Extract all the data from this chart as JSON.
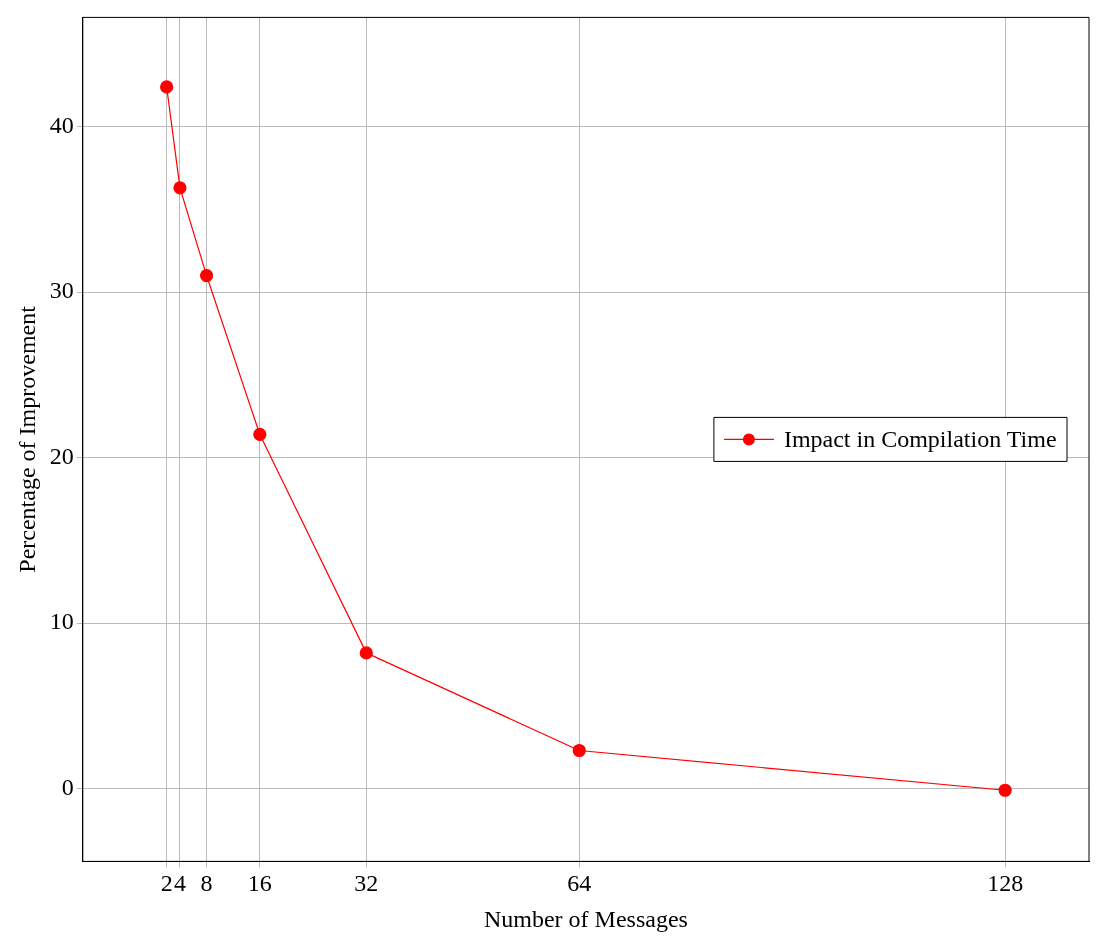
{
  "chart_data": {
    "type": "line",
    "xlabel": "Number of Messages",
    "ylabel": "Percentage of Improvement",
    "x": [
      2,
      4,
      8,
      16,
      32,
      64,
      128
    ],
    "series": [
      {
        "name": "Impact in Compilation Time",
        "color": "#ff0000",
        "values": [
          42.4,
          36.3,
          31.0,
          21.4,
          8.2,
          2.3,
          -0.1
        ]
      }
    ],
    "xlim": [
      -10.6,
      140.6
    ],
    "xticks": [
      2,
      4,
      8,
      16,
      32,
      64,
      128
    ],
    "ylim": [
      -4.4,
      46.6
    ],
    "yticks": [
      0,
      10,
      20,
      30,
      40
    ],
    "grid": true,
    "legend": "right",
    "marker": "circle",
    "line_style": "solid"
  }
}
